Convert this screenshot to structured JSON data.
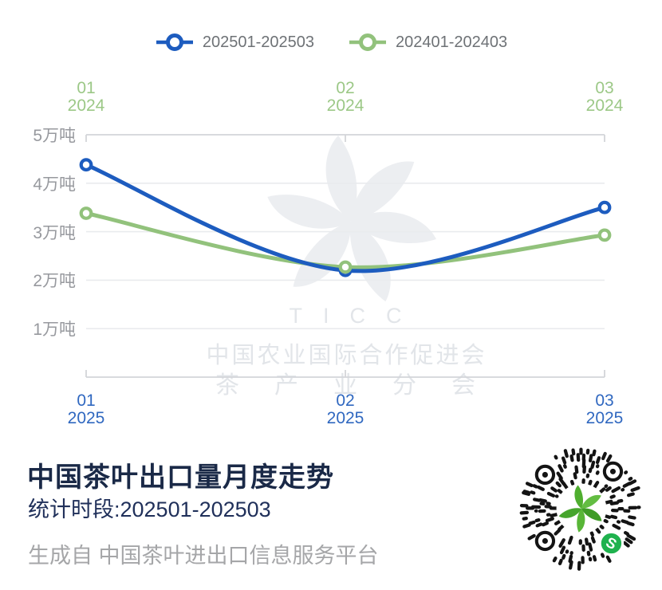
{
  "page": {
    "background": "#ffffff"
  },
  "chart_data": {
    "type": "line",
    "title": "中国茶叶出口量月度走势",
    "unit": "万吨",
    "x_categories": [
      "01",
      "02",
      "03"
    ],
    "y_ticks": [
      "5万吨",
      "4万吨",
      "3万吨",
      "2万吨",
      "1万吨"
    ],
    "ylim": [
      0,
      5
    ],
    "grid": true,
    "legend_position": "top",
    "series": [
      {
        "name": "202501-202503",
        "color": "#1d5cbf",
        "label_color": "#3068c0",
        "x_axis": "bottom",
        "x_labels": [
          {
            "month": "01",
            "year": "2025"
          },
          {
            "month": "02",
            "year": "2025"
          },
          {
            "month": "03",
            "year": "2025"
          }
        ],
        "values": [
          4.38,
          2.2,
          3.5
        ]
      },
      {
        "name": "202401-202403",
        "color": "#92c27c",
        "label_color": "#9cc887",
        "x_axis": "top",
        "x_labels": [
          {
            "month": "01",
            "year": "2024"
          },
          {
            "month": "02",
            "year": "2024"
          },
          {
            "month": "03",
            "year": "2024"
          }
        ],
        "values": [
          3.38,
          2.27,
          2.93
        ]
      }
    ]
  },
  "watermark": {
    "line1": "TICC",
    "line2": "中国农业国际合作促进会",
    "line3": "茶产业分会"
  },
  "title_block": {
    "title": "中国茶叶出口量月度走势",
    "subtitle": "统计时段:202501-202503"
  },
  "footer": {
    "text": "生成自 中国茶叶进出口信息服务平台"
  },
  "qr": {
    "badge_glyph": "S",
    "badge_color": "#1fb24e",
    "dot_color": "#141414",
    "logo_greens": [
      "#4fae2f",
      "#63bd42",
      "#3f9c27",
      "#58b637",
      "#46a52c"
    ]
  }
}
